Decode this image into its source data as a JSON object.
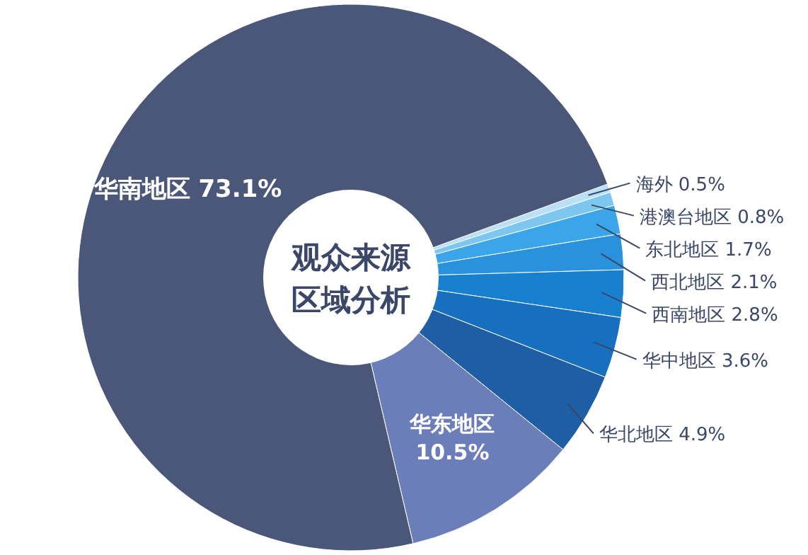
{
  "chart_data": {
    "type": "pie",
    "title": "观众来源区域分析",
    "categories": [
      "海外",
      "港澳台地区",
      "东北地区",
      "西北地区",
      "西南地区",
      "华中地区",
      "华北地区",
      "华东地区",
      "华南地区"
    ],
    "values": [
      0.5,
      0.8,
      1.7,
      2.1,
      2.8,
      3.6,
      4.9,
      10.5,
      73.1
    ],
    "value_labels": [
      "0.5%",
      "0.8%",
      "1.7%",
      "2.1%",
      "2.8%",
      "3.6%",
      "4.9%",
      "10.5%",
      "73.1%"
    ],
    "colors": [
      "#b9e0f7",
      "#7cc6f0",
      "#3aa5e8",
      "#2a92dd",
      "#1781cf",
      "#1670bf",
      "#1d5ea5",
      "#6b7eb9",
      "#4a5779"
    ]
  }
}
